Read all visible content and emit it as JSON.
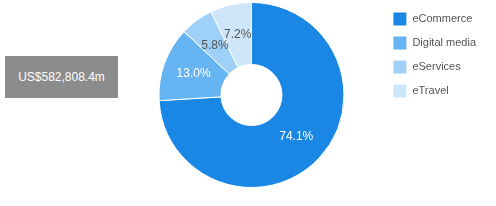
{
  "chart_data": {
    "type": "doughnut",
    "annotations": [
      "US$582,808.4m"
    ],
    "categories": [
      "eCommerce",
      "Digital media",
      "eServices",
      "eTravel"
    ],
    "values": [
      74.1,
      13.0,
      5.8,
      7.2
    ],
    "value_labels": [
      "74.1%",
      "13.0%",
      "5.8%",
      "7.2%"
    ],
    "colors": [
      "#1a87e5",
      "#67b4f3",
      "#9fd0f7",
      "#cde6fa"
    ],
    "data_labels": true,
    "legend": "right"
  }
}
